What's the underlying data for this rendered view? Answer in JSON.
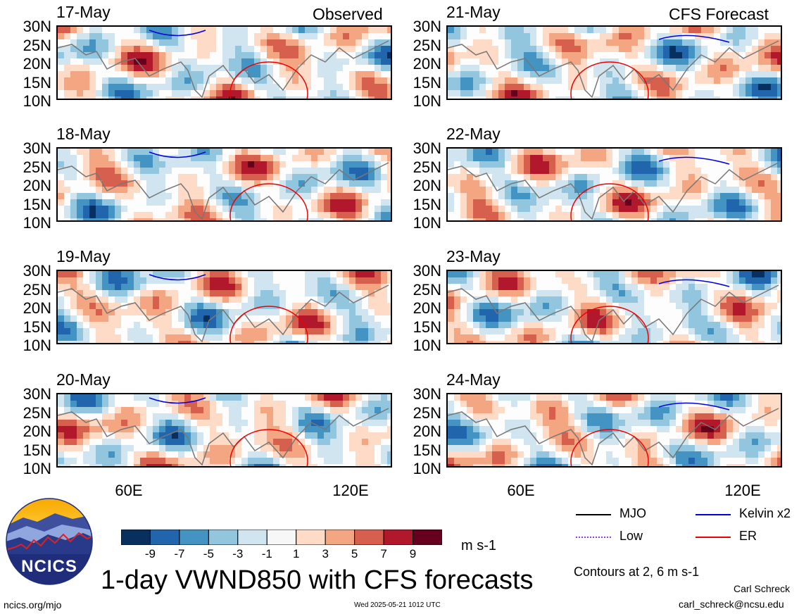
{
  "figure": {
    "column_headers": [
      "Observed",
      "CFS Forecast"
    ],
    "title": "1-day VWND850 with CFS forecasts",
    "colorbar_unit": "m s-1",
    "contour_note": "Contours at 2, 6 m s-1",
    "footer_left": "ncics.org/mjo",
    "footer_center": "Wed 2025-05-21 1012 UTC",
    "author": "Carl Schreck",
    "email": "carl_schreck@ncsu.edu",
    "logo_text": "NCICS"
  },
  "chart_data": {
    "type": "heatmap",
    "variable": "VWND850",
    "units": "m s-1",
    "y_tick_labels": [
      "30N",
      "25N",
      "20N",
      "15N",
      "10N"
    ],
    "x_tick_labels": [
      "60E",
      "120E"
    ],
    "panels": [
      {
        "date": "17-May",
        "column": "Observed"
      },
      {
        "date": "18-May",
        "column": "Observed"
      },
      {
        "date": "19-May",
        "column": "Observed"
      },
      {
        "date": "20-May",
        "column": "Observed"
      },
      {
        "date": "21-May",
        "column": "CFS Forecast"
      },
      {
        "date": "22-May",
        "column": "CFS Forecast"
      },
      {
        "date": "23-May",
        "column": "CFS Forecast"
      },
      {
        "date": "24-May",
        "column": "CFS Forecast"
      }
    ],
    "colorbar": {
      "labels": [
        "-9",
        "-7",
        "-5",
        "-3",
        "-1",
        "1",
        "3",
        "5",
        "7",
        "9"
      ],
      "colors": [
        "#08305e",
        "#2166ac",
        "#4393c3",
        "#92c5de",
        "#d1e5f0",
        "#f7f7f7",
        "#fddbc7",
        "#f4a582",
        "#d6604d",
        "#b2182b",
        "#67001f"
      ]
    },
    "legend": [
      {
        "label": "MJO",
        "color": "#000000"
      },
      {
        "label": "Kelvin x2",
        "color": "#0000dd"
      },
      {
        "label": "Low",
        "color": "#9b30ff"
      },
      {
        "label": "ER",
        "color": "#ee0000"
      }
    ]
  }
}
